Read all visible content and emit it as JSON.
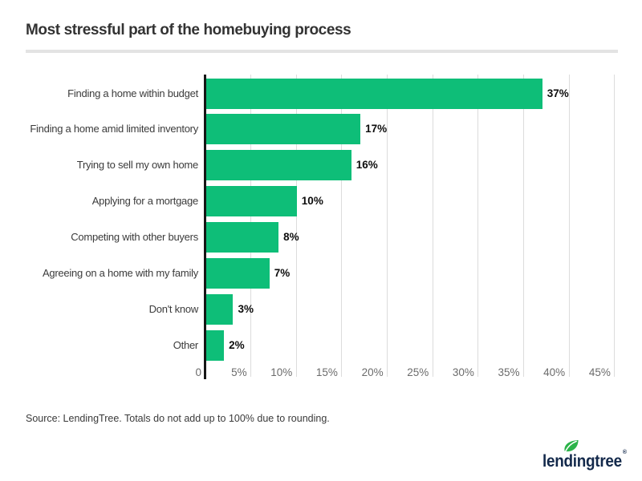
{
  "title": "Most stressful part of the homebuying process",
  "source_note": "Source: LendingTree. Totals do not add up to 100% due to rounding.",
  "logo": {
    "text": "lendingtree",
    "trademark": "®",
    "leaf_icon": "leaf-icon"
  },
  "colors": {
    "bar": "#0ebe78",
    "axis": "#161616",
    "gridline": "#dcdcdc",
    "divider": "#e3e3e3",
    "title_text": "#333333",
    "category_text": "#3b3b3b",
    "value_text": "#0d0d0d",
    "tick_text": "#6b6b6b",
    "logo_navy": "#13294b",
    "leaf_green": "#2cb34a"
  },
  "chart_data": {
    "type": "bar",
    "orientation": "horizontal",
    "title": "Most stressful part of the homebuying process",
    "categories": [
      "Finding a home within budget",
      "Finding a home amid limited inventory",
      "Trying to sell my own home",
      "Applying for a mortgage",
      "Competing with other buyers",
      "Agreeing on a home with my family",
      "Don't know",
      "Other"
    ],
    "values": [
      37,
      17,
      16,
      10,
      8,
      7,
      3,
      2
    ],
    "data_labels": [
      "37%",
      "17%",
      "16%",
      "10%",
      "8%",
      "7%",
      "3%",
      "2%"
    ],
    "xlabel": "",
    "ylabel": "",
    "xlim": [
      0,
      45
    ],
    "x_tick_step": 5,
    "x_tick_labels": [
      "0",
      "5%",
      "10%",
      "15%",
      "20%",
      "25%",
      "30%",
      "35%",
      "40%",
      "45%"
    ],
    "grid": "vertical",
    "legend": "none"
  }
}
